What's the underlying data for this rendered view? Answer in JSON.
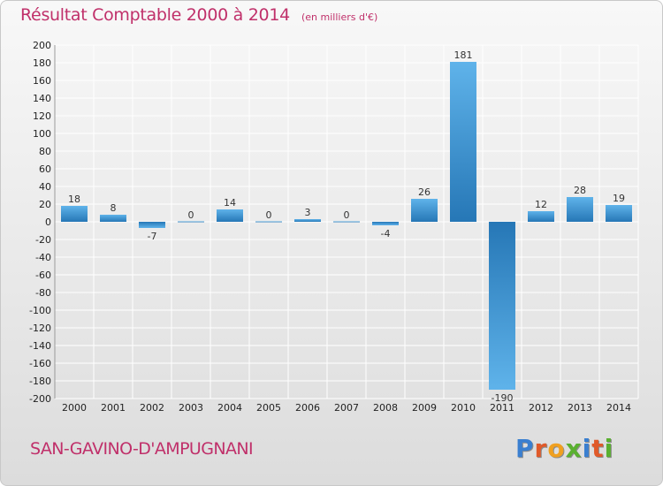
{
  "title": "Résultat Comptable 2000 à 2014",
  "unit_note": "(en milliers d'€)",
  "commune": "SAN-GAVINO-D'AMPUGNANI",
  "logo": {
    "text": "Proxiti",
    "letters": [
      {
        "ch": "P",
        "color": "#3a7fd0"
      },
      {
        "ch": "r",
        "color": "#e05a2a"
      },
      {
        "ch": "o",
        "color": "#f0a020"
      },
      {
        "ch": "x",
        "color": "#5ab030"
      },
      {
        "ch": "i",
        "color": "#3a7fd0"
      },
      {
        "ch": "t",
        "color": "#e05a2a"
      },
      {
        "ch": "i",
        "color": "#5ab030"
      }
    ]
  },
  "colors": {
    "title": "#c0306a",
    "bar_light": "#5aaee8",
    "bar_dark": "#2a7ab8",
    "grid": "#ffffff",
    "axis_text": "#222222"
  },
  "chart_data": {
    "type": "bar",
    "categories": [
      "2000",
      "2001",
      "2002",
      "2003",
      "2004",
      "2005",
      "2006",
      "2007",
      "2008",
      "2009",
      "2010",
      "2011",
      "2012",
      "2013",
      "2014"
    ],
    "values": [
      18,
      8,
      -7,
      0,
      14,
      0,
      3,
      0,
      -4,
      26,
      181,
      -190,
      12,
      28,
      19
    ],
    "value_labels": [
      "18",
      "8",
      "-7",
      "0",
      "14",
      "0",
      "3",
      "0",
      "-4",
      "26",
      "181",
      "-190",
      "12",
      "28",
      "19"
    ],
    "ylim": [
      -200,
      200
    ],
    "yticks": [
      200,
      180,
      160,
      140,
      120,
      100,
      80,
      60,
      40,
      20,
      0,
      -20,
      -40,
      -60,
      -80,
      -100,
      -120,
      -140,
      -160,
      -180,
      -200
    ],
    "ytick_labels": [
      "200",
      "180",
      "160",
      "140",
      "120",
      "100",
      "80",
      "60",
      "40",
      "20",
      "0",
      "-20",
      "-40",
      "-60",
      "-80",
      "-100",
      "-120",
      "-140",
      "-160",
      "-180",
      "-200"
    ],
    "grid": true,
    "xlabel": "",
    "ylabel": ""
  }
}
